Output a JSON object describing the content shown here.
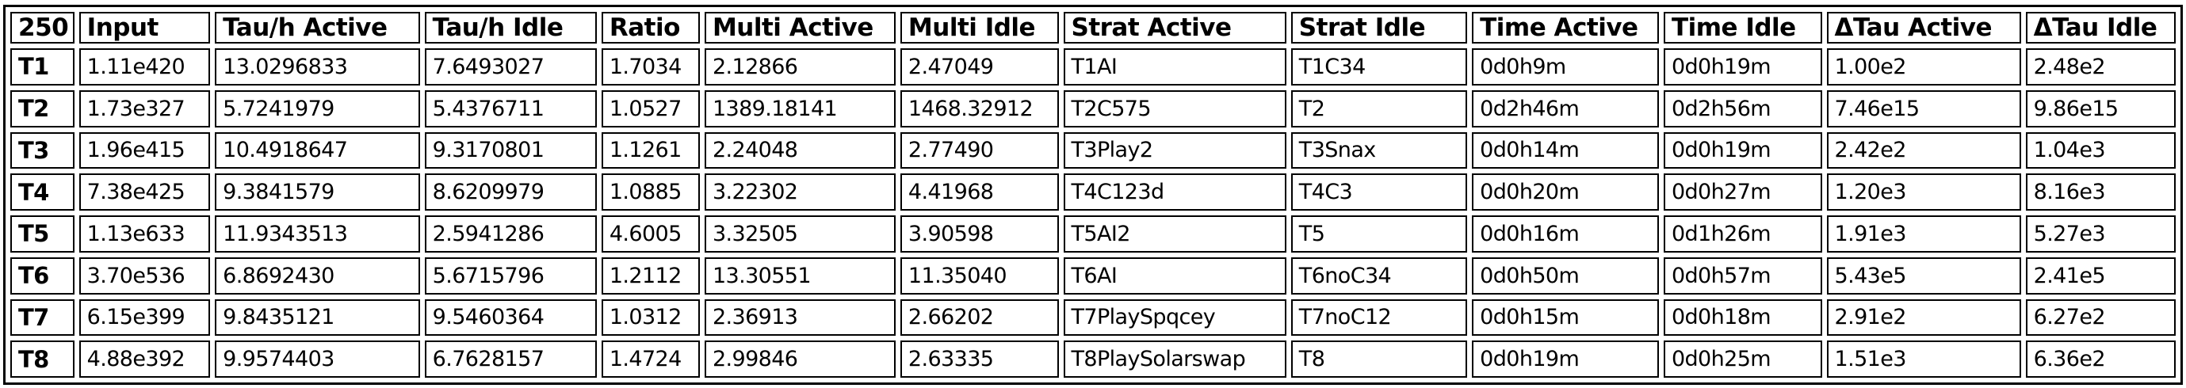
{
  "table": {
    "headers": [
      "250",
      "Input",
      "Tau/h Active",
      "Tau/h Idle",
      "Ratio",
      "Multi Active",
      "Multi Idle",
      "Strat Active",
      "Strat Idle",
      "Time Active",
      "Time Idle",
      "ΔTau Active",
      "ΔTau Idle"
    ],
    "rows": [
      [
        "T1",
        "1.11e420",
        "13.0296833",
        "7.6493027",
        "1.7034",
        "2.12866",
        "2.47049",
        "T1AI",
        "T1C34",
        "0d0h9m",
        "0d0h19m",
        "1.00e2",
        "2.48e2"
      ],
      [
        "T2",
        "1.73e327",
        "5.7241979",
        "5.4376711",
        "1.0527",
        "1389.18141",
        "1468.32912",
        "T2C575",
        "T2",
        "0d2h46m",
        "0d2h56m",
        "7.46e15",
        "9.86e15"
      ],
      [
        "T3",
        "1.96e415",
        "10.4918647",
        "9.3170801",
        "1.1261",
        "2.24048",
        "2.77490",
        "T3Play2",
        "T3Snax",
        "0d0h14m",
        "0d0h19m",
        "2.42e2",
        "1.04e3"
      ],
      [
        "T4",
        "7.38e425",
        "9.3841579",
        "8.6209979",
        "1.0885",
        "3.22302",
        "4.41968",
        "T4C123d",
        "T4C3",
        "0d0h20m",
        "0d0h27m",
        "1.20e3",
        "8.16e3"
      ],
      [
        "T5",
        "1.13e633",
        "11.9343513",
        "2.5941286",
        "4.6005",
        "3.32505",
        "3.90598",
        "T5AI2",
        "T5",
        "0d0h16m",
        "0d1h26m",
        "1.91e3",
        "5.27e3"
      ],
      [
        "T6",
        "3.70e536",
        "6.8692430",
        "5.6715796",
        "1.2112",
        "13.30551",
        "11.35040",
        "T6AI",
        "T6noC34",
        "0d0h50m",
        "0d0h57m",
        "5.43e5",
        "2.41e5"
      ],
      [
        "T7",
        "6.15e399",
        "9.8435121",
        "9.5460364",
        "1.0312",
        "2.36913",
        "2.66202",
        "T7PlaySpqcey",
        "T7noC12",
        "0d0h15m",
        "0d0h18m",
        "2.91e2",
        "6.27e2"
      ],
      [
        "T8",
        "4.88e392",
        "9.9574403",
        "6.7628157",
        "1.4724",
        "2.99846",
        "2.63335",
        "T8PlaySolarswap",
        "T8",
        "0d0h19m",
        "0d0h25m",
        "1.51e3",
        "6.36e2"
      ]
    ]
  }
}
